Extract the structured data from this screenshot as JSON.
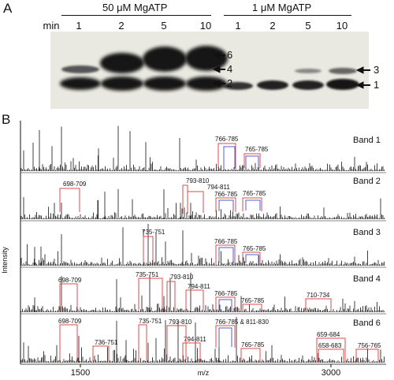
{
  "panel_a": {
    "letter": "A",
    "min_label": "min",
    "condition_high": "50 μM MgATP",
    "condition_low": "1 μM MgATP",
    "time_points_high": [
      "1",
      "2",
      "5",
      "10"
    ],
    "time_points_low": [
      "1",
      "2",
      "5",
      "10"
    ],
    "band_arrows": [
      "6",
      "4",
      "2",
      "3",
      "1"
    ]
  },
  "panel_b": {
    "letter": "B",
    "ylabel": "Intensity",
    "xlabel": "m/z",
    "xticks": [
      "1500",
      "3000"
    ],
    "spectra": [
      {
        "label": "Band 1",
        "peptides": [
          "766-785",
          "765-785"
        ]
      },
      {
        "label": "Band 2",
        "peptides": [
          "698-709",
          "793-810",
          "794-811",
          "766-785",
          "765-785"
        ]
      },
      {
        "label": "Band 3",
        "peptides": [
          "735-751",
          "766-785",
          "765-785"
        ]
      },
      {
        "label": "Band 4",
        "peptides": [
          "698-709",
          "735-751",
          "793-810",
          "794-811",
          "766-785",
          "765-785",
          "710-734"
        ]
      },
      {
        "label": "Band 6",
        "peptides": [
          "698-709",
          "735-751",
          "793-810",
          "736-751",
          "794-811",
          "766-785 & 811-830",
          "765-785",
          "659-684",
          "658-683",
          "756-765"
        ]
      }
    ]
  },
  "colors": {
    "bracket_red": "#e04a4a",
    "bracket_blue": "#4a5fd8",
    "gel_bg": "#e9e9e1"
  }
}
